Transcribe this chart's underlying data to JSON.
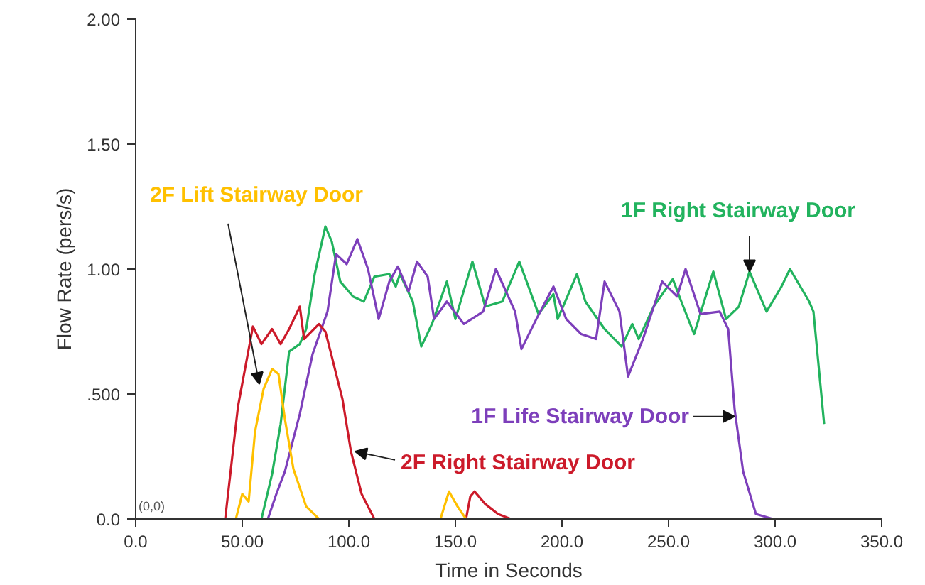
{
  "chart_data": {
    "type": "line",
    "xlabel": "Time in Seconds",
    "ylabel": "Flow Rate (pers/s)",
    "xlim": [
      0,
      350
    ],
    "ylim": [
      0,
      2
    ],
    "xticks": [
      {
        "value": 0,
        "label": "0.0"
      },
      {
        "value": 50,
        "label": "50.00"
      },
      {
        "value": 100,
        "label": "100.0"
      },
      {
        "value": 150,
        "label": "150.0"
      },
      {
        "value": 200,
        "label": "200.0"
      },
      {
        "value": 250,
        "label": "250.0"
      },
      {
        "value": 300,
        "label": "300.0"
      },
      {
        "value": 350,
        "label": "350.0"
      }
    ],
    "yticks": [
      {
        "value": 0,
        "label": "0.0"
      },
      {
        "value": 0.5,
        "label": ".500"
      },
      {
        "value": 1,
        "label": "1.00"
      },
      {
        "value": 1.5,
        "label": "1.50"
      },
      {
        "value": 2,
        "label": "2.00"
      }
    ],
    "grid": false,
    "marker": "none",
    "line_style": "solid",
    "series": [
      {
        "color": "#22b35e",
        "x": [
          0,
          59,
          64,
          68,
          72,
          77,
          80,
          84,
          89,
          92,
          96,
          102,
          107,
          112,
          119,
          122,
          124,
          130,
          134,
          139,
          146,
          150,
          158,
          164,
          172,
          180,
          189,
          196,
          198,
          207,
          211,
          220,
          228,
          233,
          236,
          243,
          252,
          256,
          262,
          271,
          277,
          283,
          288,
          296,
          303,
          307,
          316,
          318,
          323
        ],
        "values": [
          0,
          0,
          0.18,
          0.38,
          0.67,
          0.7,
          0.76,
          0.98,
          1.17,
          1.11,
          0.95,
          0.89,
          0.87,
          0.97,
          0.98,
          0.93,
          0.98,
          0.87,
          0.69,
          0.78,
          0.95,
          0.8,
          1.03,
          0.85,
          0.87,
          1.03,
          0.82,
          0.9,
          0.8,
          0.98,
          0.87,
          0.76,
          0.69,
          0.78,
          0.72,
          0.85,
          0.96,
          0.87,
          0.74,
          0.99,
          0.8,
          0.85,
          0.99,
          0.83,
          0.93,
          1.0,
          0.87,
          0.83,
          0.38
        ]
      },
      {
        "color": "#7d3fbb",
        "x": [
          0,
          62,
          66,
          70,
          77,
          83,
          90,
          94,
          99,
          104,
          109,
          114,
          119,
          123,
          128,
          132,
          137,
          140,
          146,
          154,
          163,
          169,
          178,
          181,
          188,
          196,
          202,
          209,
          216,
          220,
          227,
          231,
          238,
          247,
          254,
          258,
          265,
          274,
          278,
          281,
          285,
          291,
          299,
          325
        ],
        "values": [
          0,
          0,
          0.1,
          0.19,
          0.42,
          0.66,
          0.83,
          1.06,
          1.02,
          1.12,
          1.0,
          0.8,
          0.95,
          1.01,
          0.91,
          1.03,
          0.97,
          0.8,
          0.87,
          0.78,
          0.83,
          1.0,
          0.83,
          0.68,
          0.8,
          0.93,
          0.8,
          0.74,
          0.72,
          0.95,
          0.83,
          0.57,
          0.72,
          0.95,
          0.89,
          1.0,
          0.82,
          0.83,
          0.76,
          0.44,
          0.19,
          0.02,
          0,
          0
        ]
      },
      {
        "color": "#cc1a2a",
        "x": [
          0,
          42,
          48,
          55,
          59,
          64,
          68,
          72,
          77,
          79,
          86,
          89,
          92,
          97,
          101,
          106,
          112,
          155,
          157,
          159,
          164,
          170,
          176,
          325
        ],
        "values": [
          0,
          0,
          0.45,
          0.77,
          0.7,
          0.76,
          0.7,
          0.76,
          0.85,
          0.72,
          0.78,
          0.75,
          0.65,
          0.48,
          0.27,
          0.1,
          0,
          0,
          0.09,
          0.11,
          0.06,
          0.02,
          0,
          0
        ]
      },
      {
        "color": "#ffc000",
        "x": [
          0,
          47,
          50,
          53,
          56,
          60,
          64,
          67,
          70,
          74,
          80,
          86,
          143,
          147,
          151,
          155,
          325
        ],
        "values": [
          0,
          0,
          0.1,
          0.07,
          0.35,
          0.52,
          0.6,
          0.58,
          0.4,
          0.2,
          0.05,
          0,
          0,
          0.11,
          0.05,
          0,
          0
        ]
      }
    ],
    "annotations": [
      {
        "text": "1F Right Stairway Door",
        "x": 288,
        "y": 0.99
      },
      {
        "text": "1F Life Stairway Door",
        "x": 281,
        "y": 0.41
      },
      {
        "text": "2F Right Stairway Door",
        "x": 103,
        "y": 0.27
      },
      {
        "text": "2F Lift Stairway Door",
        "x": 58,
        "y": 0.54
      },
      {
        "text": "(0,0)",
        "x": 0,
        "y": 0
      }
    ]
  }
}
